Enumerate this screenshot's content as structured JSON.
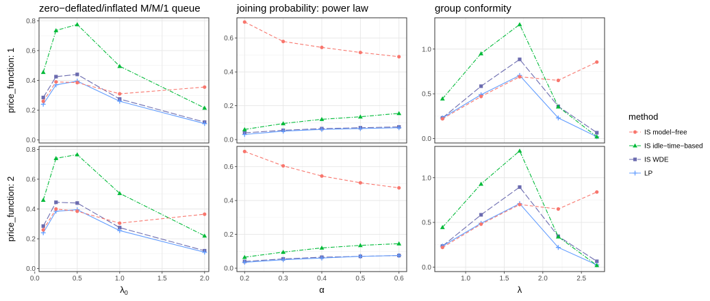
{
  "chart_data": {
    "type": "line",
    "legend": {
      "title": "method",
      "position": "right",
      "entries": [
        {
          "label": "IS model−free",
          "color": "#F8766D",
          "marker": "circle",
          "dash": "dashed"
        },
        {
          "label": "IS idle−time−based",
          "color": "#00BA38",
          "marker": "triangle",
          "dash": "dotdash"
        },
        {
          "label": "IS WDE",
          "color": "#6B6BAF",
          "marker": "square",
          "dash": "longdash"
        },
        {
          "label": "LP",
          "color": "#619CFF",
          "marker": "plus",
          "dash": "solid"
        }
      ]
    },
    "rows": [
      "price_function: 1",
      "price_function: 2"
    ],
    "panels": [
      {
        "title": "zero−deflated/inflated M/M/1 queue",
        "xlabel_base": "λ",
        "xlabel_sub": "0",
        "x": [
          0.1,
          0.25,
          0.5,
          1.0,
          2.0
        ],
        "xlim": [
          0.05,
          2.05
        ],
        "xticks": [
          "0.0",
          "0.5",
          "1.0",
          "1.5",
          "2.0"
        ],
        "xtick_values": [
          0,
          0.5,
          1.0,
          1.5,
          2.0
        ],
        "rows": [
          {
            "ylim": [
              -0.02,
              0.82
            ],
            "yticks": [
              "0.0",
              "0.2",
              "0.4",
              "0.6",
              "0.8"
            ],
            "ytick_values": [
              0,
              0.2,
              0.4,
              0.6,
              0.8
            ],
            "series": [
              {
                "name": "IS model−free",
                "values": [
                  0.26,
                  0.39,
                  0.385,
                  0.31,
                  0.355
                ]
              },
              {
                "name": "IS idle−time−based",
                "values": [
                  0.455,
                  0.735,
                  0.775,
                  0.495,
                  0.215
                ]
              },
              {
                "name": "IS WDE",
                "values": [
                  0.285,
                  0.425,
                  0.44,
                  0.275,
                  0.12
                ]
              },
              {
                "name": "LP",
                "values": [
                  0.24,
                  0.37,
                  0.395,
                  0.26,
                  0.11
                ]
              }
            ]
          },
          {
            "ylim": [
              -0.02,
              0.82
            ],
            "yticks": [
              "0.0",
              "0.2",
              "0.4",
              "0.6",
              "0.8"
            ],
            "ytick_values": [
              0,
              0.2,
              0.4,
              0.6,
              0.8
            ],
            "series": [
              {
                "name": "IS model−free",
                "values": [
                  0.26,
                  0.4,
                  0.385,
                  0.305,
                  0.365
                ]
              },
              {
                "name": "IS idle−time−based",
                "values": [
                  0.46,
                  0.74,
                  0.765,
                  0.505,
                  0.22
                ]
              },
              {
                "name": "IS WDE",
                "values": [
                  0.285,
                  0.445,
                  0.44,
                  0.275,
                  0.12
                ]
              },
              {
                "name": "LP",
                "values": [
                  0.24,
                  0.385,
                  0.395,
                  0.255,
                  0.11
                ]
              }
            ]
          }
        ]
      },
      {
        "title": "joining probability: power law",
        "xlabel_base": "α",
        "xlabel_sub": "",
        "x": [
          0.2,
          0.3,
          0.4,
          0.5,
          0.6
        ],
        "xlim": [
          0.18,
          0.62
        ],
        "xticks": [
          "0.2",
          "0.3",
          "0.4",
          "0.5",
          "0.6"
        ],
        "xtick_values": [
          0.2,
          0.3,
          0.4,
          0.5,
          0.6
        ],
        "rows": [
          {
            "ylim": [
              -0.02,
              0.72
            ],
            "yticks": [
              "0.0",
              "0.2",
              "0.4",
              "0.6"
            ],
            "ytick_values": [
              0,
              0.2,
              0.4,
              0.6
            ],
            "series": [
              {
                "name": "IS model−free",
                "values": [
                  0.695,
                  0.58,
                  0.545,
                  0.515,
                  0.49
                ]
              },
              {
                "name": "IS idle−time−based",
                "values": [
                  0.06,
                  0.095,
                  0.12,
                  0.135,
                  0.155
                ]
              },
              {
                "name": "IS WDE",
                "values": [
                  0.04,
                  0.055,
                  0.065,
                  0.07,
                  0.075
                ]
              },
              {
                "name": "LP",
                "values": [
                  0.03,
                  0.05,
                  0.06,
                  0.065,
                  0.07
                ]
              }
            ]
          },
          {
            "ylim": [
              -0.02,
              0.72
            ],
            "yticks": [
              "0.0",
              "0.2",
              "0.4",
              "0.6"
            ],
            "ytick_values": [
              0,
              0.2,
              0.4,
              0.6
            ],
            "series": [
              {
                "name": "IS model−free",
                "values": [
                  0.69,
                  0.605,
                  0.545,
                  0.505,
                  0.475
                ]
              },
              {
                "name": "IS idle−time−based",
                "values": [
                  0.065,
                  0.095,
                  0.12,
                  0.135,
                  0.145
                ]
              },
              {
                "name": "IS WDE",
                "values": [
                  0.04,
                  0.055,
                  0.065,
                  0.07,
                  0.075
                ]
              },
              {
                "name": "LP",
                "values": [
                  0.035,
                  0.05,
                  0.06,
                  0.07,
                  0.075
                ]
              }
            ]
          }
        ]
      },
      {
        "title": "group conformity",
        "xlabel_base": "λ",
        "xlabel_sub": "",
        "x": [
          0.7,
          1.2,
          1.7,
          2.2,
          2.7
        ],
        "xlim": [
          0.6,
          2.8
        ],
        "xticks": [
          "1.0",
          "1.5",
          "2.0",
          "2.5"
        ],
        "xtick_values": [
          1.0,
          1.5,
          2.0,
          2.5
        ],
        "rows": [
          {
            "ylim": [
              -0.05,
              1.35
            ],
            "yticks": [
              "0.0",
              "0.5",
              "1.0"
            ],
            "ytick_values": [
              0,
              0.5,
              1.0
            ],
            "series": [
              {
                "name": "IS model−free",
                "values": [
                  0.22,
                  0.47,
                  0.69,
                  0.65,
                  0.855
                ]
              },
              {
                "name": "IS idle−time−based",
                "values": [
                  0.445,
                  0.95,
                  1.275,
                  0.355,
                  0.02
                ]
              },
              {
                "name": "IS WDE",
                "values": [
                  0.23,
                  0.585,
                  0.885,
                  0.36,
                  0.065
                ]
              },
              {
                "name": "LP",
                "values": [
                  0.23,
                  0.49,
                  0.705,
                  0.23,
                  0.02
                ]
              }
            ]
          },
          {
            "ylim": [
              -0.05,
              1.35
            ],
            "yticks": [
              "0.0",
              "0.5",
              "1.0"
            ],
            "ytick_values": [
              0,
              0.5,
              1.0
            ],
            "series": [
              {
                "name": "IS model−free",
                "values": [
                  0.22,
                  0.48,
                  0.7,
                  0.65,
                  0.84
                ]
              },
              {
                "name": "IS idle−time−based",
                "values": [
                  0.445,
                  0.93,
                  1.3,
                  0.34,
                  0.02
                ]
              },
              {
                "name": "IS WDE",
                "values": [
                  0.235,
                  0.585,
                  0.895,
                  0.345,
                  0.065
                ]
              },
              {
                "name": "LP",
                "values": [
                  0.235,
                  0.49,
                  0.71,
                  0.22,
                  0.025
                ]
              }
            ]
          }
        ]
      }
    ]
  }
}
